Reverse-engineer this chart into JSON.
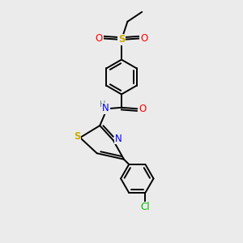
{
  "bg_color": "#ebebeb",
  "atom_colors": {
    "C": "#000000",
    "H": "#5f8080",
    "N": "#0000ff",
    "O": "#ff0000",
    "S_sulfonyl": "#ccaa00",
    "S_thiazole": "#ccaa00",
    "Cl": "#00bb00"
  },
  "bond_color": "#000000",
  "bond_width": 1.4,
  "font_size_atom": 8.5,
  "font_size_small": 7.0,
  "dbo_ring": 0.12,
  "dbo_exo": 0.1
}
